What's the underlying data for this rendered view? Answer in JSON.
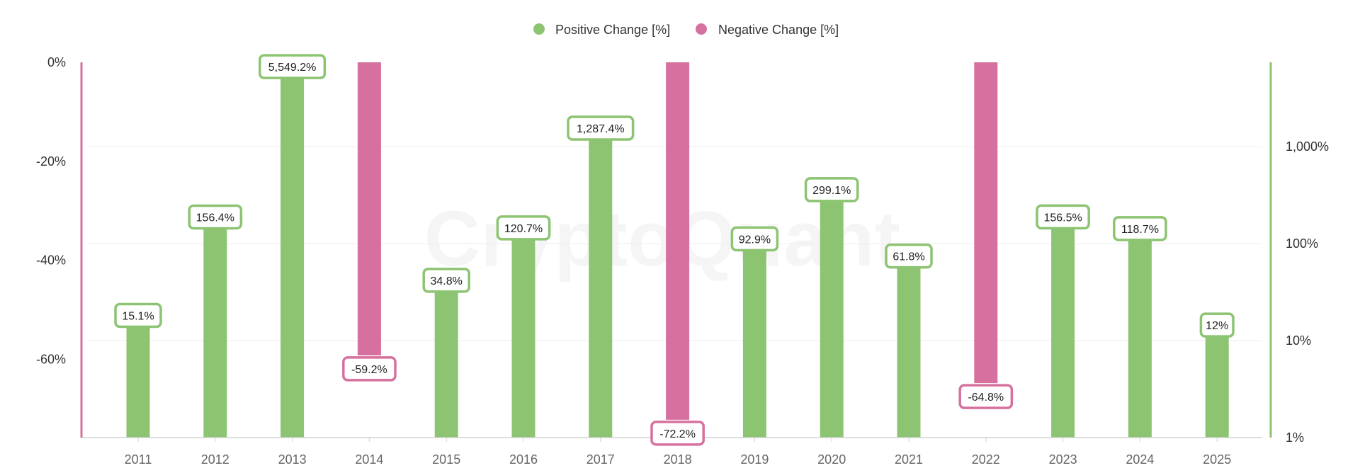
{
  "legend": {
    "positive": "Positive Change [%]",
    "negative": "Negative Change [%]"
  },
  "watermark": "CryptoQuant",
  "colors": {
    "positive": "#8cc472",
    "negative": "#d6719f",
    "grid": "#eeeeee",
    "axis": "#d0d0d0"
  },
  "chart_data": {
    "type": "bar",
    "categories": [
      "2011",
      "2012",
      "2013",
      "2014",
      "2015",
      "2016",
      "2017",
      "2018",
      "2019",
      "2020",
      "2021",
      "2022",
      "2023",
      "2024",
      "2025"
    ],
    "series": [
      {
        "name": "Positive Change [%]",
        "axis": "right",
        "scale": "log",
        "values": [
          15.1,
          156.4,
          5549.2,
          null,
          34.8,
          120.7,
          1287.4,
          null,
          92.9,
          299.1,
          61.8,
          null,
          156.5,
          118.7,
          12
        ],
        "labels": [
          "15.1%",
          "156.4%",
          "5,549.2%",
          "",
          "34.8%",
          "120.7%",
          "1,287.4%",
          "",
          "92.9%",
          "299.1%",
          "61.8%",
          "",
          "156.5%",
          "118.7%",
          "12%"
        ]
      },
      {
        "name": "Negative Change [%]",
        "axis": "left",
        "scale": "linear",
        "values": [
          null,
          null,
          null,
          -59.2,
          null,
          null,
          null,
          -72.2,
          null,
          null,
          null,
          -64.8,
          null,
          null,
          null
        ],
        "labels": [
          "",
          "",
          "",
          "-59.2%",
          "",
          "",
          "",
          "-72.2%",
          "",
          "",
          "",
          "-64.8%",
          "",
          "",
          ""
        ]
      }
    ],
    "left_axis": {
      "ticks": [
        "0%",
        "-20%",
        "-40%",
        "-60%"
      ],
      "tick_values": [
        0,
        -20,
        -40,
        -60
      ],
      "ylim": [
        0,
        -75.8
      ]
    },
    "right_axis": {
      "ticks": [
        "1,000%",
        "100%",
        "10%",
        "1%"
      ],
      "tick_values": [
        1000,
        100,
        10,
        1
      ],
      "ylim": [
        1,
        7400
      ],
      "scale": "log"
    },
    "legend_position": "top-center",
    "grid": true
  }
}
